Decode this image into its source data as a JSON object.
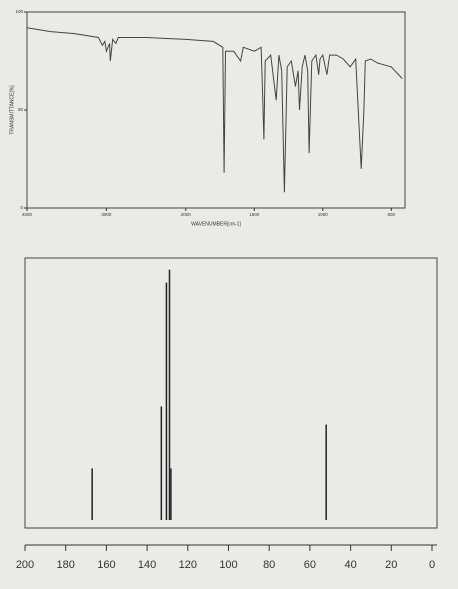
{
  "chart_data": [
    {
      "type": "line",
      "x_label": "WAVENUMBER[cm-1]",
      "y_label": "TRANSMITTANCE[%]",
      "x": [
        4000,
        3700,
        3400,
        3100,
        3050,
        3020,
        3000,
        2960,
        2950,
        2920,
        2880,
        2850,
        2500,
        2000,
        1800,
        1730,
        1720,
        1710,
        1650,
        1600,
        1580,
        1500,
        1450,
        1440,
        1430,
        1420,
        1380,
        1340,
        1320,
        1300,
        1280,
        1260,
        1230,
        1200,
        1180,
        1170,
        1150,
        1130,
        1110,
        1100,
        1080,
        1050,
        1030,
        1020,
        1000,
        970,
        950,
        900,
        850,
        800,
        760,
        720,
        700,
        690,
        650,
        600,
        500,
        420
      ],
      "values": [
        92,
        90,
        89,
        87,
        83,
        85,
        80,
        84,
        75,
        86,
        84,
        87,
        87,
        86,
        85,
        82,
        18,
        80,
        80,
        75,
        82,
        80,
        82,
        60,
        35,
        75,
        78,
        55,
        78,
        70,
        8,
        72,
        75,
        62,
        70,
        50,
        72,
        78,
        70,
        28,
        75,
        78,
        68,
        76,
        78,
        68,
        78,
        78,
        76,
        72,
        76,
        20,
        50,
        75,
        76,
        74,
        72,
        66
      ],
      "color": "#444",
      "xlim": [
        4000,
        400
      ],
      "x_scale_break": 2000,
      "xticks": [
        4000,
        3000,
        2000,
        1500,
        1000,
        500
      ],
      "ylim": [
        0,
        100
      ],
      "yticks": [
        0,
        50,
        100
      ]
    },
    {
      "type": "stem",
      "x": [
        167,
        133,
        130.5,
        129,
        128.3,
        52
      ],
      "values": [
        20,
        44,
        92,
        97,
        20,
        37
      ],
      "color": "#222",
      "xlim": [
        200,
        0
      ],
      "xticks": [
        200,
        180,
        160,
        140,
        120,
        100,
        80,
        60,
        40,
        20,
        0
      ],
      "ylim": [
        0,
        100
      ]
    }
  ]
}
